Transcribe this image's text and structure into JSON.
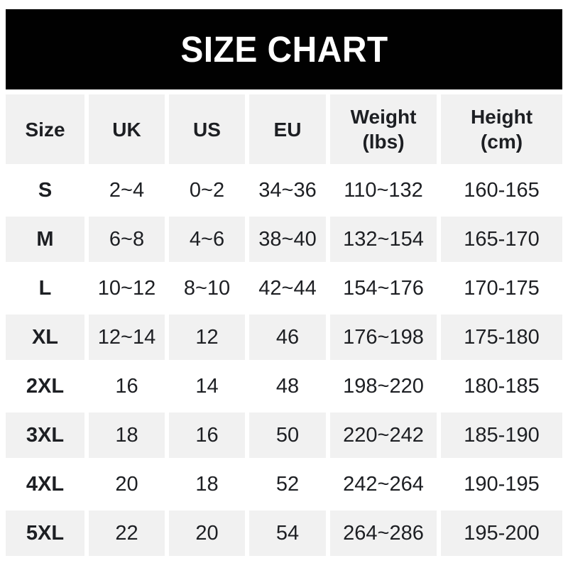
{
  "banner": {
    "title": "SIZE CHART",
    "bg_color": "#010101",
    "text_color": "#ffffff"
  },
  "colors": {
    "row_shade_bg": "#f1f1f1",
    "row_plain_bg": "#ffffff",
    "text": "#1d1f23"
  },
  "table": {
    "headers": [
      {
        "id": "size",
        "label": "Size"
      },
      {
        "id": "uk",
        "label": "UK"
      },
      {
        "id": "us",
        "label": "US"
      },
      {
        "id": "eu",
        "label": "EU"
      },
      {
        "id": "weight",
        "label": "Weight\n(lbs)"
      },
      {
        "id": "height",
        "label": "Height\n(cm)"
      }
    ],
    "rows": [
      {
        "size": "S",
        "uk": "2~4",
        "us": "0~2",
        "eu": "34~36",
        "weight": "110~132",
        "height": "160-165"
      },
      {
        "size": "M",
        "uk": "6~8",
        "us": "4~6",
        "eu": "38~40",
        "weight": "132~154",
        "height": "165-170"
      },
      {
        "size": "L",
        "uk": "10~12",
        "us": "8~10",
        "eu": "42~44",
        "weight": "154~176",
        "height": "170-175"
      },
      {
        "size": "XL",
        "uk": "12~14",
        "us": "12",
        "eu": "46",
        "weight": "176~198",
        "height": "175-180"
      },
      {
        "size": "2XL",
        "uk": "16",
        "us": "14",
        "eu": "48",
        "weight": "198~220",
        "height": "180-185"
      },
      {
        "size": "3XL",
        "uk": "18",
        "us": "16",
        "eu": "50",
        "weight": "220~242",
        "height": "185-190"
      },
      {
        "size": "4XL",
        "uk": "20",
        "us": "18",
        "eu": "52",
        "weight": "242~264",
        "height": "190-195"
      },
      {
        "size": "5XL",
        "uk": "22",
        "us": "20",
        "eu": "54",
        "weight": "264~286",
        "height": "195-200"
      }
    ]
  },
  "chart_data": {
    "type": "table",
    "title": "SIZE CHART",
    "columns": [
      "Size",
      "UK",
      "US",
      "EU",
      "Weight (lbs)",
      "Height (cm)"
    ],
    "rows": [
      [
        "S",
        "2~4",
        "0~2",
        "34~36",
        "110~132",
        "160-165"
      ],
      [
        "M",
        "6~8",
        "4~6",
        "38~40",
        "132~154",
        "165-170"
      ],
      [
        "L",
        "10~12",
        "8~10",
        "42~44",
        "154~176",
        "170-175"
      ],
      [
        "XL",
        "12~14",
        "12",
        "46",
        "176~198",
        "175-180"
      ],
      [
        "2XL",
        "16",
        "14",
        "48",
        "198~220",
        "180-185"
      ],
      [
        "3XL",
        "18",
        "16",
        "50",
        "220~242",
        "185-190"
      ],
      [
        "4XL",
        "20",
        "18",
        "52",
        "242~264",
        "190-195"
      ],
      [
        "5XL",
        "22",
        "20",
        "54",
        "264~286",
        "195-200"
      ]
    ],
    "layout_hints": {
      "header_row_shaded": true,
      "alternating_row_shading": "header gray, then white/gray alternating",
      "range_separator_weight": "~",
      "range_separator_height": "-"
    }
  }
}
